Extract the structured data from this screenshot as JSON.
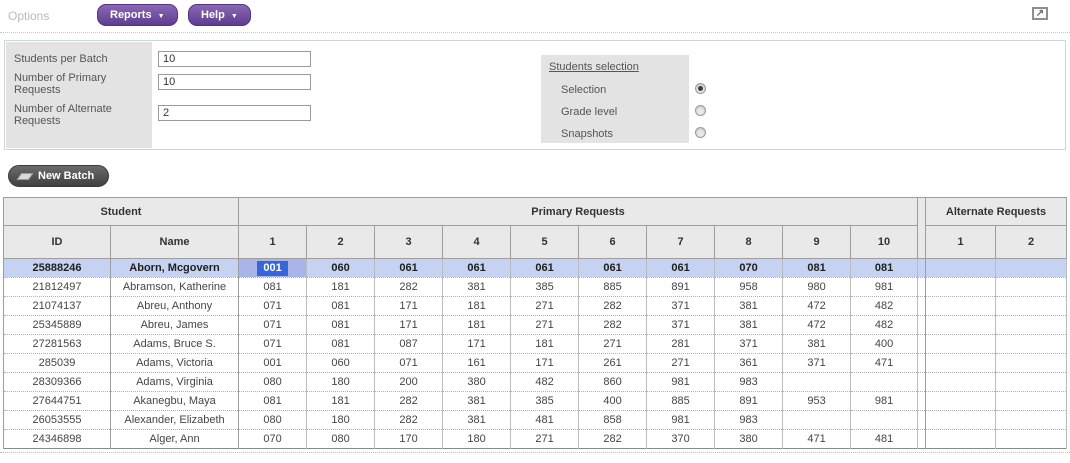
{
  "toolbar": {
    "options_label": "Options",
    "reports_label": "Reports",
    "help_label": "Help",
    "dropdown_arrow": "▼",
    "popout_glyph": "↗"
  },
  "form": {
    "fields": [
      {
        "label": "Students per Batch",
        "value": "10"
      },
      {
        "label": "Number of Primary Requests",
        "value": "10"
      },
      {
        "label": "Number of Alternate Requests",
        "value": "2"
      }
    ],
    "selection_group": {
      "title": "Students selection",
      "options": [
        {
          "label": "Selection",
          "selected": true
        },
        {
          "label": "Grade level",
          "selected": false
        },
        {
          "label": "Snapshots",
          "selected": false
        }
      ]
    }
  },
  "actions": {
    "new_batch_label": "New Batch"
  },
  "table": {
    "group_headers": [
      {
        "label": "Student",
        "span": 2
      },
      {
        "label": "Primary Requests",
        "span": 10
      },
      {
        "label": "Alternate Requests",
        "span": 2
      }
    ],
    "columns": {
      "id": "ID",
      "name": "Name",
      "primary": [
        "1",
        "2",
        "3",
        "4",
        "5",
        "6",
        "7",
        "8",
        "9",
        "10"
      ],
      "alternate": [
        "1",
        "2"
      ]
    },
    "highlighted_row": 0,
    "selected_cell": {
      "row": 0,
      "col": 0
    },
    "rows": [
      {
        "id": "25888246",
        "name": "Aborn, Mcgovern",
        "primary": [
          "001",
          "060",
          "061",
          "061",
          "061",
          "061",
          "061",
          "070",
          "081",
          "081"
        ],
        "alternate": [
          "",
          ""
        ]
      },
      {
        "id": "21812497",
        "name": "Abramson, Katherine",
        "primary": [
          "081",
          "181",
          "282",
          "381",
          "385",
          "885",
          "891",
          "958",
          "980",
          "981"
        ],
        "alternate": [
          "",
          ""
        ]
      },
      {
        "id": "21074137",
        "name": "Abreu, Anthony",
        "primary": [
          "071",
          "081",
          "171",
          "181",
          "271",
          "282",
          "371",
          "381",
          "472",
          "482"
        ],
        "alternate": [
          "",
          ""
        ]
      },
      {
        "id": "25345889",
        "name": "Abreu, James",
        "primary": [
          "071",
          "081",
          "171",
          "181",
          "271",
          "282",
          "371",
          "381",
          "472",
          "482"
        ],
        "alternate": [
          "",
          ""
        ]
      },
      {
        "id": "27281563",
        "name": "Adams, Bruce S.",
        "primary": [
          "071",
          "081",
          "087",
          "171",
          "181",
          "271",
          "281",
          "371",
          "381",
          "400"
        ],
        "alternate": [
          "",
          ""
        ]
      },
      {
        "id": "285039",
        "name": "Adams, Victoria",
        "primary": [
          "001",
          "060",
          "071",
          "161",
          "171",
          "261",
          "271",
          "361",
          "371",
          "471"
        ],
        "alternate": [
          "",
          ""
        ]
      },
      {
        "id": "28309366",
        "name": "Adams, Virginia",
        "primary": [
          "080",
          "180",
          "200",
          "380",
          "482",
          "860",
          "981",
          "983",
          "",
          ""
        ],
        "alternate": [
          "",
          ""
        ]
      },
      {
        "id": "27644751",
        "name": "Akanegbu, Maya",
        "primary": [
          "081",
          "181",
          "282",
          "381",
          "385",
          "400",
          "885",
          "891",
          "953",
          "981"
        ],
        "alternate": [
          "",
          ""
        ]
      },
      {
        "id": "26053555",
        "name": "Alexander, Elizabeth",
        "primary": [
          "080",
          "180",
          "282",
          "381",
          "481",
          "858",
          "981",
          "983",
          "",
          ""
        ],
        "alternate": [
          "",
          ""
        ]
      },
      {
        "id": "24346898",
        "name": "Alger, Ann",
        "primary": [
          "070",
          "080",
          "170",
          "180",
          "271",
          "282",
          "370",
          "380",
          "471",
          "481"
        ],
        "alternate": [
          "",
          ""
        ]
      }
    ]
  },
  "colors": {
    "accent_purple": "#6b4a9e",
    "header_gray": "#e9e9e9",
    "row_highlight": "#c6d2f2",
    "selected_cell_bg": "#3766db",
    "selected_cell_halo": "#a9b5e8"
  }
}
